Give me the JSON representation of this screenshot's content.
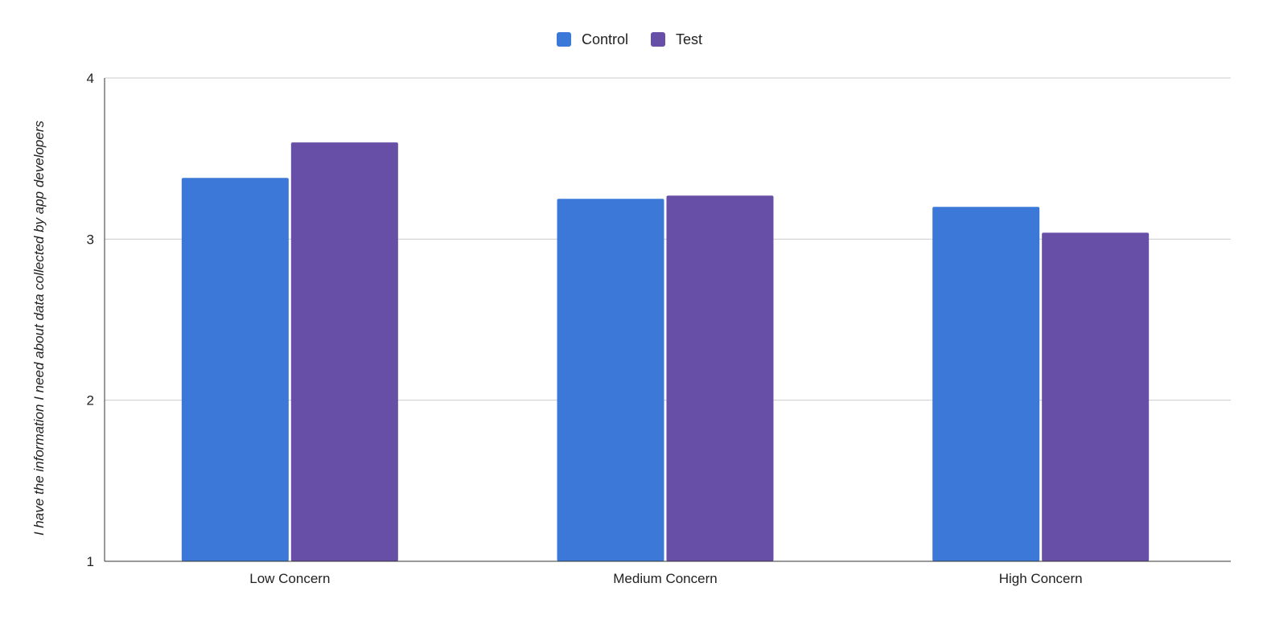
{
  "chart_data": {
    "type": "bar",
    "title": "",
    "xlabel": "",
    "ylabel": "I have the information I need about data collected by app developers",
    "ylim": [
      1,
      4
    ],
    "yticks": [
      1,
      2,
      3,
      4
    ],
    "grid": true,
    "legend_position": "top-center",
    "categories": [
      "Low Concern",
      "Medium Concern",
      "High Concern"
    ],
    "series": [
      {
        "name": "Control",
        "color": "#3c78d8",
        "values": [
          3.38,
          3.25,
          3.2
        ]
      },
      {
        "name": "Test",
        "color": "#674ea7",
        "values": [
          3.6,
          3.27,
          3.04
        ]
      }
    ]
  }
}
